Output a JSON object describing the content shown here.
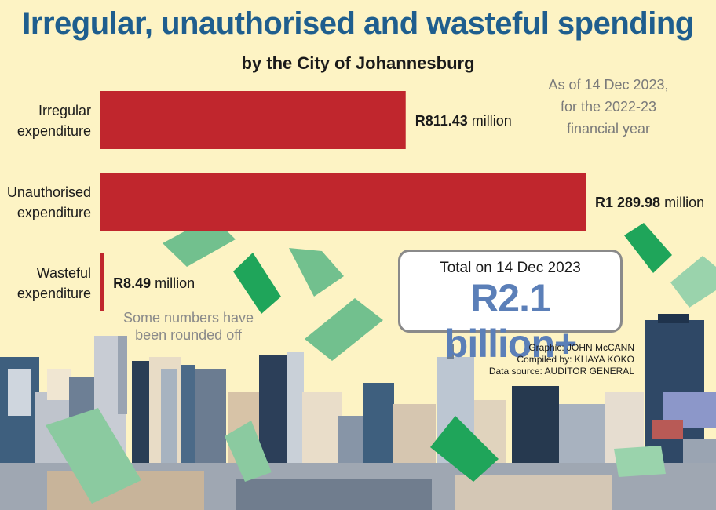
{
  "header": {
    "title": "Irregular, unauthorised and wasteful spending",
    "subtitle": "by the City of Johannesburg",
    "as_of": "As of 14 Dec 2023, for the 2022-23 financial year"
  },
  "chart_data": {
    "type": "bar",
    "orientation": "horizontal",
    "categories": [
      "Irregular expenditure",
      "Unauthorised expenditure",
      "Wasteful expenditure"
    ],
    "values": [
      811.43,
      1289.98,
      8.49
    ],
    "value_labels": [
      "R811.43 million",
      "R1 289.98 million",
      "R8.49 million"
    ],
    "unit": "million",
    "xlim": [
      0,
      1289.98
    ],
    "bar_color": "#c0262d",
    "grid": false
  },
  "note": "Some numbers have been rounded off",
  "total": {
    "label": "Total on 14 Dec 2023",
    "value": "R2.1 billion+"
  },
  "credits": {
    "graphic": "Graphic: JOHN McCANN",
    "compiled": "Compiled by: KHAYA KOKO",
    "source": "Data source: AUDITOR GENERAL"
  },
  "colors": {
    "background": "#fdf3c4",
    "title": "#1f5e8e",
    "total": "#5b7fb8",
    "note": "#8a8a8a"
  }
}
